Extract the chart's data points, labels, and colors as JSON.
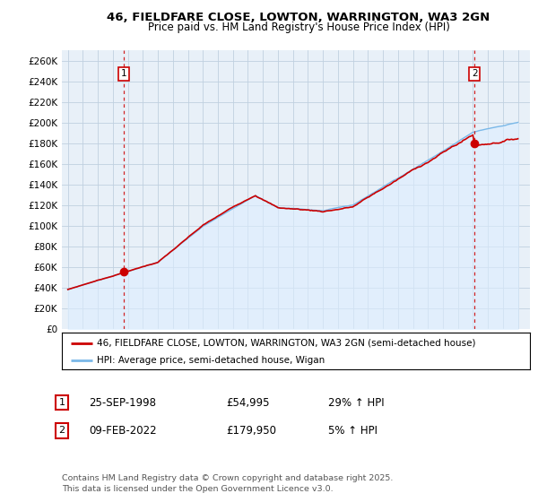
{
  "title_line1": "46, FIELDFARE CLOSE, LOWTON, WARRINGTON, WA3 2GN",
  "title_line2": "Price paid vs. HM Land Registry's House Price Index (HPI)",
  "ylabel_ticks": [
    "£0",
    "£20K",
    "£40K",
    "£60K",
    "£80K",
    "£100K",
    "£120K",
    "£140K",
    "£160K",
    "£180K",
    "£200K",
    "£220K",
    "£240K",
    "£260K"
  ],
  "ytick_values": [
    0,
    20000,
    40000,
    60000,
    80000,
    100000,
    120000,
    140000,
    160000,
    180000,
    200000,
    220000,
    240000,
    260000
  ],
  "ylim": [
    0,
    270000
  ],
  "sale1_date_num": 1998.73,
  "sale1_price": 54995,
  "sale1_label": "1",
  "sale2_date_num": 2022.11,
  "sale2_price": 179950,
  "sale2_label": "2",
  "hpi_color": "#7ab8e8",
  "hpi_fill_color": "#ddeeff",
  "price_color": "#cc0000",
  "vline_color": "#cc0000",
  "legend_label_price": "46, FIELDFARE CLOSE, LOWTON, WARRINGTON, WA3 2GN (semi-detached house)",
  "legend_label_hpi": "HPI: Average price, semi-detached house, Wigan",
  "table_row1": [
    "1",
    "25-SEP-1998",
    "£54,995",
    "29% ↑ HPI"
  ],
  "table_row2": [
    "2",
    "09-FEB-2022",
    "£179,950",
    "5% ↑ HPI"
  ],
  "footer": "Contains HM Land Registry data © Crown copyright and database right 2025.\nThis data is licensed under the Open Government Licence v3.0.",
  "background_color": "#ffffff",
  "chart_bg_color": "#e8f0f8",
  "grid_color": "#c0d0e0"
}
